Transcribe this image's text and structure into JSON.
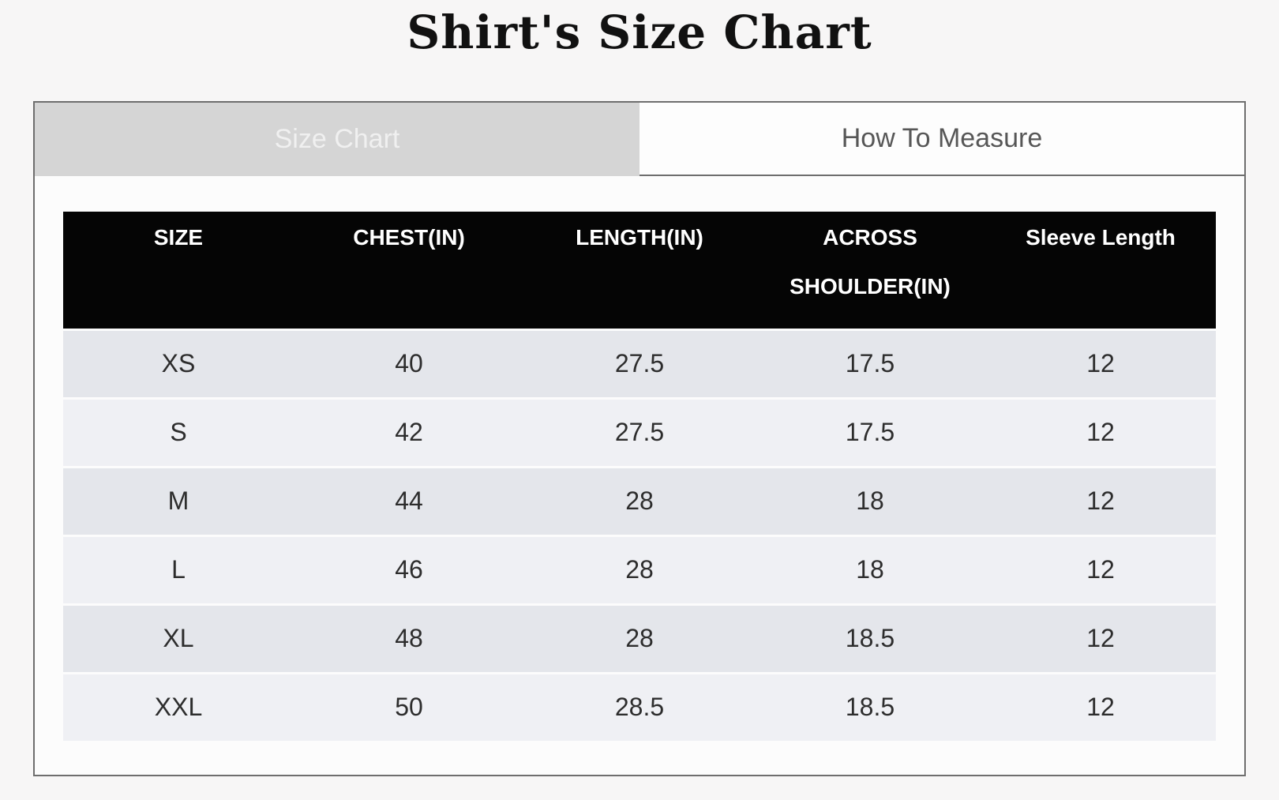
{
  "page": {
    "title": "Shirt's Size Chart"
  },
  "tabs": {
    "size_chart_label": "Size Chart",
    "how_to_measure_label": "How To Measure",
    "active_tab": "Size Chart"
  },
  "colors": {
    "page_background": "#f7f6f6",
    "card_border": "#6e6e6e",
    "active_tab_background": "#d5d5d5",
    "active_tab_text": "#f0f0f0",
    "inactive_tab_text": "#575757",
    "header_background": "#050505",
    "header_text": "#ffffff",
    "row_odd_background": "#e4e6eb",
    "row_even_background": "#eff0f4"
  },
  "chart_data": {
    "type": "table",
    "title": "Shirt's Size Chart",
    "columns": [
      "SIZE",
      "CHEST(IN)",
      "LENGTH(IN)",
      "ACROSS SHOULDER(IN)",
      "Sleeve Length"
    ],
    "rows": [
      [
        "XS",
        "40",
        "27.5",
        "17.5",
        "12"
      ],
      [
        "S",
        "42",
        "27.5",
        "17.5",
        "12"
      ],
      [
        "M",
        "44",
        "28",
        "18",
        "12"
      ],
      [
        "L",
        "46",
        "28",
        "18",
        "12"
      ],
      [
        "XL",
        "48",
        "28",
        "18.5",
        "12"
      ],
      [
        "XXL",
        "50",
        "28.5",
        "18.5",
        "12"
      ]
    ]
  }
}
